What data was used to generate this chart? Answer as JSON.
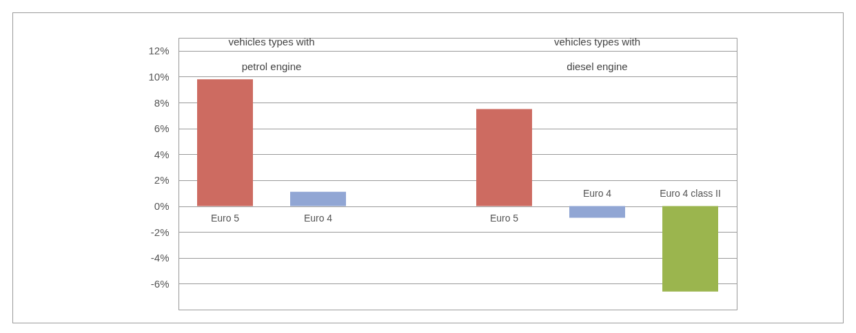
{
  "chart_data": {
    "type": "bar",
    "categories": [
      "Euro 5",
      "Euro 4",
      null,
      "Euro 5",
      "Euro 4",
      "Euro 4 class II"
    ],
    "values": [
      9.8,
      1.1,
      null,
      7.5,
      -0.9,
      -6.6
    ],
    "colors": [
      "#cd6b61",
      "#91a6d4",
      null,
      "#cd6b61",
      "#91a6d4",
      "#9bb54e"
    ],
    "ylim": [
      -8,
      13
    ],
    "yticks": [
      {
        "value": -6,
        "label": "-6%"
      },
      {
        "value": -4,
        "label": "-4%"
      },
      {
        "value": -2,
        "label": "-2%"
      },
      {
        "value": 0,
        "label": "0%"
      },
      {
        "value": 2,
        "label": "2%"
      },
      {
        "value": 4,
        "label": "4%"
      },
      {
        "value": 6,
        "label": "6%"
      },
      {
        "value": 8,
        "label": "8%"
      },
      {
        "value": 10,
        "label": "10%"
      },
      {
        "value": 12,
        "label": "12%"
      }
    ],
    "grid": "y",
    "annotations": [
      "vehicles types with\npetrol engine",
      "vehicles types with\ndiesel engine"
    ]
  }
}
